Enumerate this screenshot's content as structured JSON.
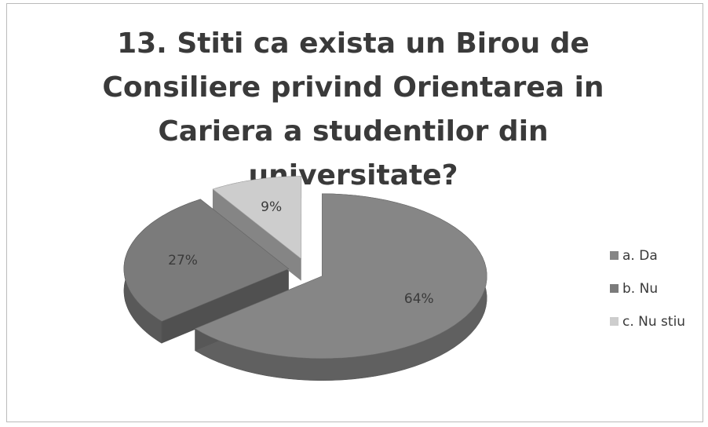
{
  "chart_data": {
    "type": "pie",
    "title": "13. Stiti ca exista un Birou de Consiliere privind Orientarea in Cariera a studentilor din universitate?",
    "categories": [
      "a. Da",
      "b. Nu",
      "c. Nu stiu"
    ],
    "values": [
      64,
      27,
      9
    ],
    "value_labels": [
      "64%",
      "27%",
      "9%"
    ],
    "colors": [
      "#868686",
      "#7b7b7b",
      "#cdcdcd"
    ],
    "legend": "right"
  }
}
